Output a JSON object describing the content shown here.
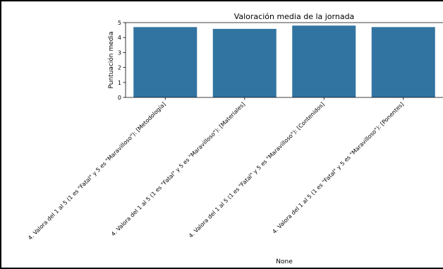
{
  "chart_data": {
    "type": "bar",
    "title": "Valoración media de la jornada",
    "xlabel": "None",
    "ylabel": "Puntuación media",
    "categories": [
      "4. Valora del 1 al 5  (1 es \"Fatal\" y 5 es \"Maravilloso\"): [Metodología]",
      "4. Valora del 1 al 5  (1 es \"Fatal\" y 5 es \"Maravilloso\"): [Materiales]",
      "4. Valora del 1 al 5  (1 es \"Fatal\" y 5 es \"Maravilloso\"): [Contenidos]",
      "4. Valora del 1 al 5  (1 es \"Fatal\" y 5 es \"Maravilloso\"): [Ponentes]"
    ],
    "values": [
      4.7,
      4.58,
      4.8,
      4.7
    ],
    "ylim": [
      0,
      5
    ],
    "yticks": [
      0,
      1,
      2,
      3,
      4,
      5
    ],
    "grid": false,
    "bar_color": "#3274a1"
  }
}
